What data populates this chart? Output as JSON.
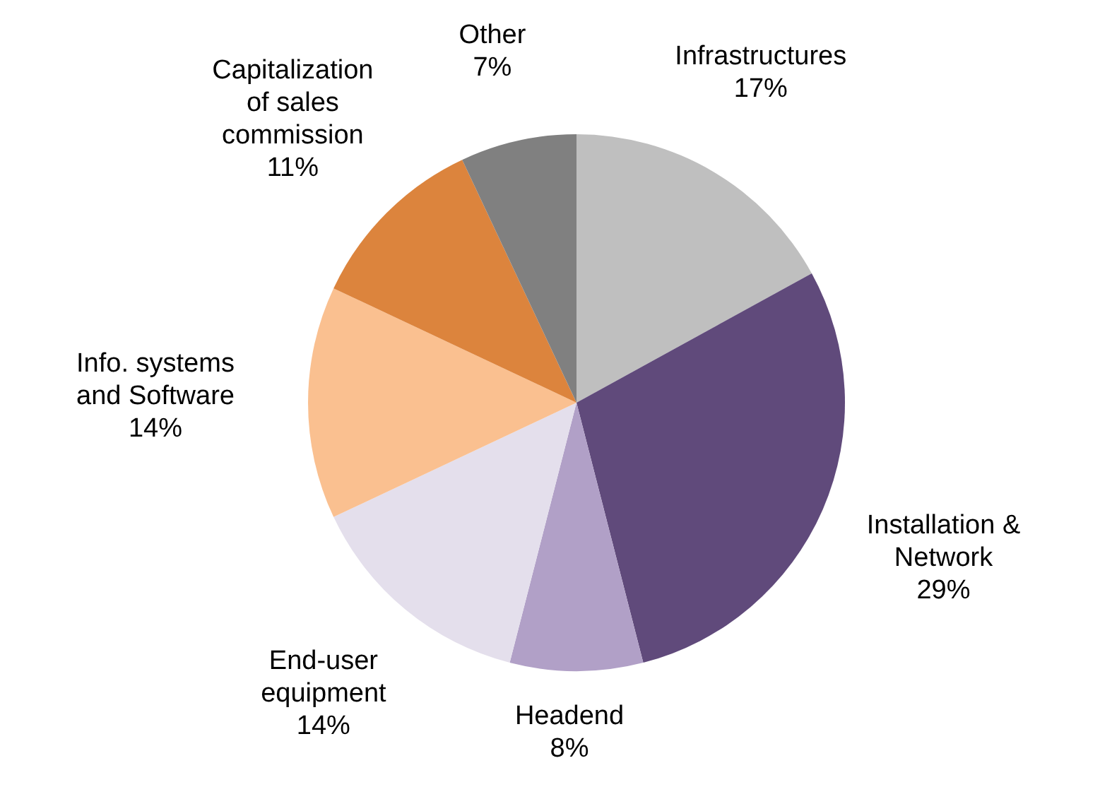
{
  "chart_data": {
    "type": "pie",
    "categories": [
      "Infrastructures",
      "Installation & Network",
      "Headend",
      "End-user equipment",
      "Info. systems and Software",
      "Capitalization of sales commission",
      "Other"
    ],
    "values": [
      17,
      29,
      8,
      14,
      14,
      11,
      7
    ],
    "colors": [
      "#bfbfbf",
      "#604a7b",
      "#b1a0c7",
      "#e4dfec",
      "#fac090",
      "#dc843d",
      "#808080"
    ],
    "value_labels": [
      "17%",
      "29%",
      "8%",
      "14%",
      "14%",
      "11%",
      "7%"
    ],
    "legend": false
  }
}
